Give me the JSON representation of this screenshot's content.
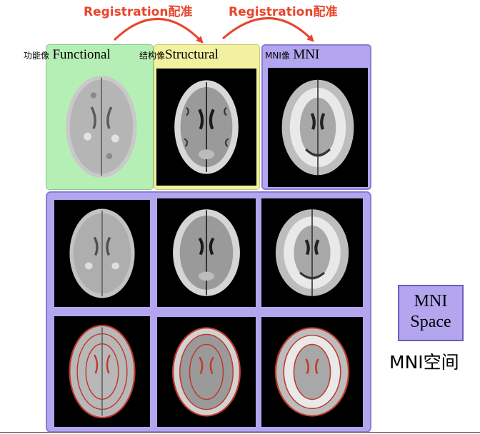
{
  "arrows": {
    "left_label": "Registration配准",
    "right_label": "Registration配准",
    "color": "#e8452c"
  },
  "panels": {
    "functional": {
      "cn": "功能像",
      "en": "Functional",
      "color": "#b6efb6"
    },
    "structural": {
      "cn": "结构像",
      "en": "Structural",
      "color": "#f1f1a0"
    },
    "mni": {
      "cn": "MNI像",
      "en": "MNI",
      "color": "#b3a6ef"
    }
  },
  "mni_space": {
    "line1": "MNI",
    "line2": "Space",
    "caption": "MNI空间"
  },
  "grid": {
    "rows": [
      "normalized",
      "normalized-with-outline"
    ],
    "columns": [
      "functional",
      "structural",
      "mni"
    ],
    "outline_color": "#c0392b"
  }
}
